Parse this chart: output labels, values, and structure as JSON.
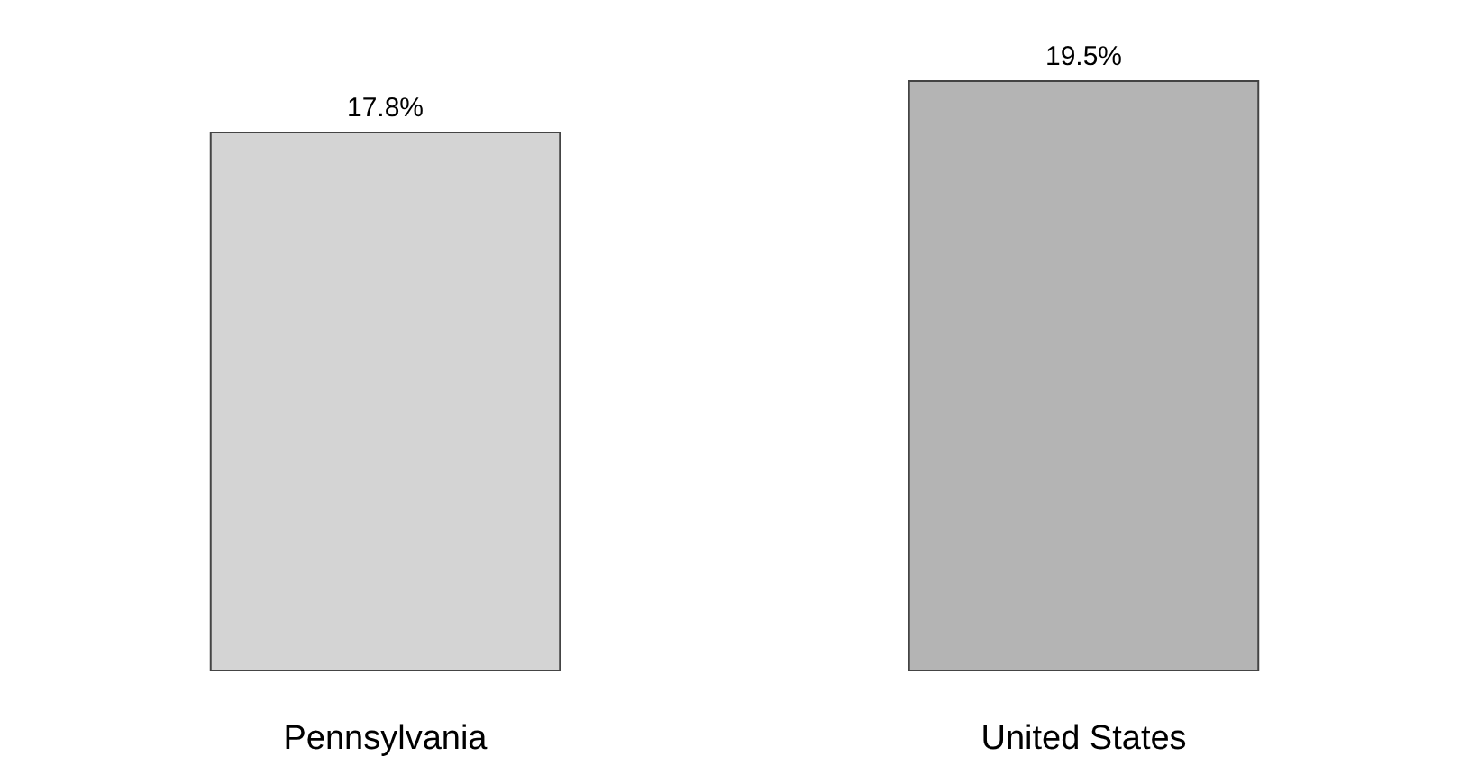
{
  "chart_data": {
    "type": "bar",
    "categories": [
      "Pennsylvania",
      "United States"
    ],
    "values": [
      17.8,
      19.5
    ],
    "value_labels": [
      "17.8%",
      "19.5%"
    ],
    "colors": [
      "#d4d4d4",
      "#b4b4b4"
    ]
  }
}
